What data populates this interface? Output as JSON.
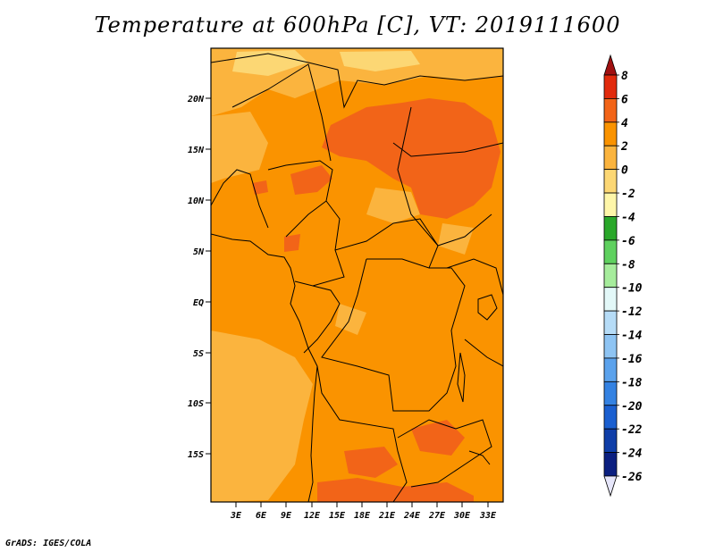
{
  "title": "Temperature at 600hPa [C], VT: 2019111600",
  "credit": "GrADS: IGES/COLA",
  "axes": {
    "lat_labels": [
      "20N",
      "15N",
      "10N",
      "5N",
      "EQ",
      "5S",
      "10S",
      "15S"
    ],
    "lon_labels": [
      "3E",
      "6E",
      "9E",
      "12E",
      "15E",
      "18E",
      "21E",
      "24E",
      "27E",
      "30E",
      "33E"
    ]
  },
  "colorbar": {
    "labels": [
      "8",
      "6",
      "4",
      "2",
      "0",
      "-2",
      "-4",
      "-6",
      "-8",
      "-10",
      "-12",
      "-14",
      "-16",
      "-18",
      "-20",
      "-22",
      "-24",
      "-26"
    ],
    "colors": [
      "#a01010",
      "#e12a0c",
      "#f26418",
      "#fa9300",
      "#fbb43e",
      "#fcd774",
      "#fef6a9",
      "#2aa82a",
      "#5fd15f",
      "#a6ec9c",
      "#e3f8f8",
      "#b6dcf7",
      "#8ec4f3",
      "#5ba2ec",
      "#3482e2",
      "#1a5fd0",
      "#0f3ea8",
      "#0b1f80",
      "#000a60"
    ],
    "arrow_bottom_color": "#e6e6fa"
  },
  "field_colors": {
    "base": "#fa9300",
    "warm": "#f26418",
    "cool": "#fbb43e",
    "coolest": "#fcd774"
  }
}
